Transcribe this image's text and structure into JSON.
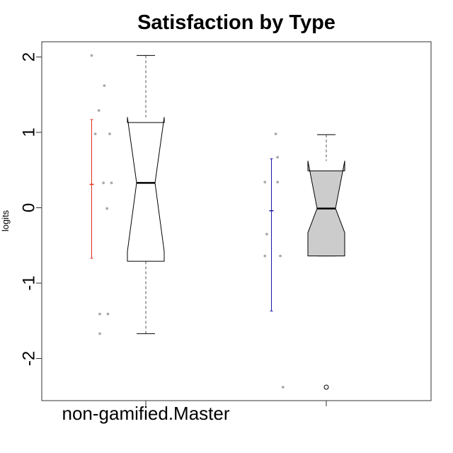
{
  "chart_data": {
    "type": "boxplot",
    "title": "Satisfaction by Type",
    "ylabel": "logits",
    "xlabel": "",
    "ylim": [
      -2.55,
      2.2
    ],
    "yticks": [
      -2,
      -1,
      0,
      1,
      2
    ],
    "ytick_labels": [
      "-2",
      "-1",
      "0",
      "1",
      "2"
    ],
    "notched": true,
    "grid": false,
    "groups": [
      {
        "label": "non-gamified.Master",
        "box_fill": "#ffffff",
        "whisker_low": -1.67,
        "q1": -0.71,
        "median": 0.33,
        "q3": 1.13,
        "whisker_high": 2.02,
        "notch_low": -0.58,
        "notch_high": 1.2,
        "outliers": [],
        "mean_ci": {
          "mean": 0.31,
          "low": -0.67,
          "high": 1.17,
          "color": "#e0301e"
        },
        "points": [
          {
            "x": 0.7,
            "y": 2.02
          },
          {
            "x": 0.77,
            "y": 1.62
          },
          {
            "x": 0.74,
            "y": 1.29
          },
          {
            "x": 0.72,
            "y": 0.98
          },
          {
            "x": 0.8,
            "y": 0.98
          },
          {
            "x": 0.765,
            "y": 0.33
          },
          {
            "x": 0.81,
            "y": 0.33
          },
          {
            "x": 0.785,
            "y": -0.01
          },
          {
            "x": 0.745,
            "y": -1.41
          },
          {
            "x": 0.79,
            "y": -1.41
          },
          {
            "x": 0.745,
            "y": -1.67
          }
        ]
      },
      {
        "label": "",
        "box_fill": "#cccccc",
        "whisker_low": -0.64,
        "q1": -0.64,
        "median": -0.01,
        "q3": 0.49,
        "whisker_high": 0.97,
        "notch_low": -0.33,
        "notch_high": 0.62,
        "outliers": [
          -2.38
        ],
        "mean_ci": {
          "mean": -0.04,
          "low": -1.37,
          "high": 0.65,
          "color": "#1a1aa8"
        },
        "points": [
          {
            "x": 1.72,
            "y": 0.98
          },
          {
            "x": 1.73,
            "y": 0.67
          },
          {
            "x": 1.66,
            "y": 0.34
          },
          {
            "x": 1.73,
            "y": 0.34
          },
          {
            "x": 1.67,
            "y": -0.35
          },
          {
            "x": 1.66,
            "y": -0.64
          },
          {
            "x": 1.745,
            "y": -0.64
          },
          {
            "x": 1.76,
            "y": -2.38
          }
        ]
      }
    ],
    "colors": {
      "points": "#aaaaaa",
      "box_stroke": "#000000",
      "whisker": "#555555",
      "axis": "#333333"
    }
  }
}
